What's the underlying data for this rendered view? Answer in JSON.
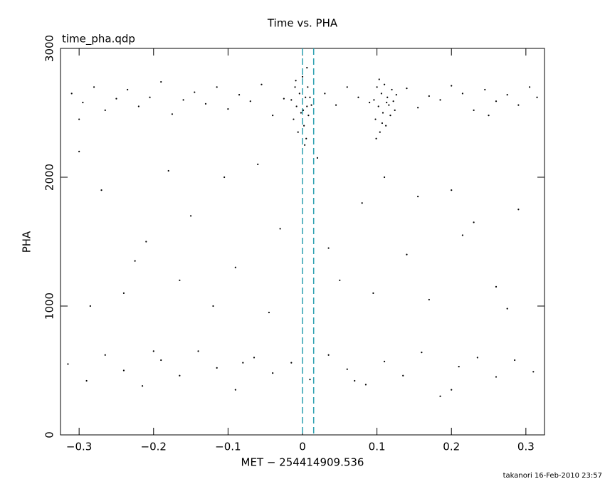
{
  "chart_data": {
    "type": "scatter",
    "title": "Time vs. PHA",
    "annotation": "time_pha.qdp",
    "x_label": "MET − 254414909.536",
    "y_label": "PHA",
    "footer": "takanori 16-Feb-2010 23:57",
    "xlim": [
      -0.325,
      0.325
    ],
    "ylim": [
      0,
      3000
    ],
    "xticks": [
      {
        "value": -0.3,
        "label": "−0.3"
      },
      {
        "value": -0.2,
        "label": "−0.2"
      },
      {
        "value": -0.1,
        "label": "−0.1"
      },
      0,
      0.1,
      0.2,
      0.3
    ],
    "yticks": [
      0,
      1000,
      2000,
      3000
    ],
    "vlines": [
      0,
      0.015
    ],
    "vline_color": "#2a9fb0",
    "color": "#000000",
    "x": [
      -0.31,
      -0.295,
      -0.28,
      -0.265,
      -0.25,
      -0.235,
      -0.22,
      -0.205,
      -0.19,
      -0.175,
      -0.16,
      -0.145,
      -0.13,
      -0.115,
      -0.1,
      -0.085,
      -0.07,
      -0.055,
      -0.04,
      -0.025,
      0.03,
      0.045,
      0.06,
      0.075,
      0.09,
      0.14,
      0.155,
      0.17,
      0.185,
      0.2,
      0.215,
      0.23,
      0.245,
      0.26,
      0.275,
      0.29,
      0.305,
      0.315,
      -0.3,
      0.25,
      -0.015,
      -0.012,
      -0.01,
      -0.008,
      -0.006,
      -0.004,
      -0.002,
      0,
      0.002,
      0.004,
      0.005,
      0.006,
      0.007,
      0.008,
      0.01,
      0.012,
      -0.009,
      0.003,
      0.006,
      0.001,
      0.096,
      0.098,
      0.1,
      0.102,
      0.104,
      0.106,
      0.108,
      0.11,
      0.112,
      0.114,
      0.116,
      0.118,
      0.12,
      0.122,
      0.124,
      0.126,
      0.099,
      0.103,
      0.107,
      0.113,
      -0.3,
      -0.27,
      -0.24,
      -0.21,
      -0.18,
      -0.15,
      -0.12,
      -0.09,
      -0.06,
      -0.03,
      0.02,
      0.05,
      0.08,
      0.11,
      0.14,
      0.17,
      0.2,
      0.23,
      0.26,
      0.29,
      -0.285,
      -0.225,
      -0.165,
      -0.105,
      -0.045,
      0.035,
      0.095,
      0.155,
      0.215,
      0.275,
      -0.315,
      -0.29,
      -0.265,
      -0.24,
      -0.215,
      -0.19,
      -0.165,
      -0.14,
      -0.115,
      -0.09,
      -0.065,
      -0.04,
      -0.015,
      0.01,
      0.035,
      0.06,
      0.085,
      0.11,
      0.135,
      0.16,
      0.185,
      0.21,
      0.235,
      0.26,
      0.285,
      0.31,
      -0.2,
      -0.08,
      0.07,
      0.2
    ],
    "values": [
      2650,
      2580,
      2700,
      2520,
      2610,
      2680,
      2550,
      2620,
      2740,
      2490,
      2600,
      2660,
      2570,
      2700,
      2530,
      2640,
      2590,
      2720,
      2480,
      2610,
      2650,
      2560,
      2700,
      2620,
      2580,
      2690,
      2540,
      2630,
      2600,
      2710,
      2650,
      2520,
      2680,
      2590,
      2640,
      2560,
      2700,
      2620,
      2450,
      2480,
      2600,
      2450,
      2700,
      2550,
      2350,
      2650,
      2500,
      2780,
      2400,
      2620,
      2300,
      2550,
      2700,
      2480,
      2620,
      2560,
      2750,
      2250,
      2850,
      2520,
      2600,
      2450,
      2700,
      2550,
      2350,
      2650,
      2500,
      2720,
      2400,
      2620,
      2560,
      2480,
      2680,
      2590,
      2520,
      2640,
      2300,
      2760,
      2420,
      2580,
      2200,
      1900,
      1100,
      1500,
      2050,
      1700,
      1000,
      1300,
      2100,
      1600,
      2150,
      1200,
      1800,
      2000,
      1400,
      1050,
      1900,
      1650,
      1150,
      1750,
      1000,
      1350,
      1200,
      2000,
      950,
      1450,
      1100,
      1850,
      1550,
      980,
      550,
      420,
      620,
      500,
      380,
      580,
      460,
      650,
      520,
      350,
      600,
      480,
      560,
      430,
      620,
      510,
      390,
      570,
      460,
      640,
      300,
      530,
      600,
      450,
      580,
      490,
      650,
      560,
      420,
      350
    ]
  }
}
